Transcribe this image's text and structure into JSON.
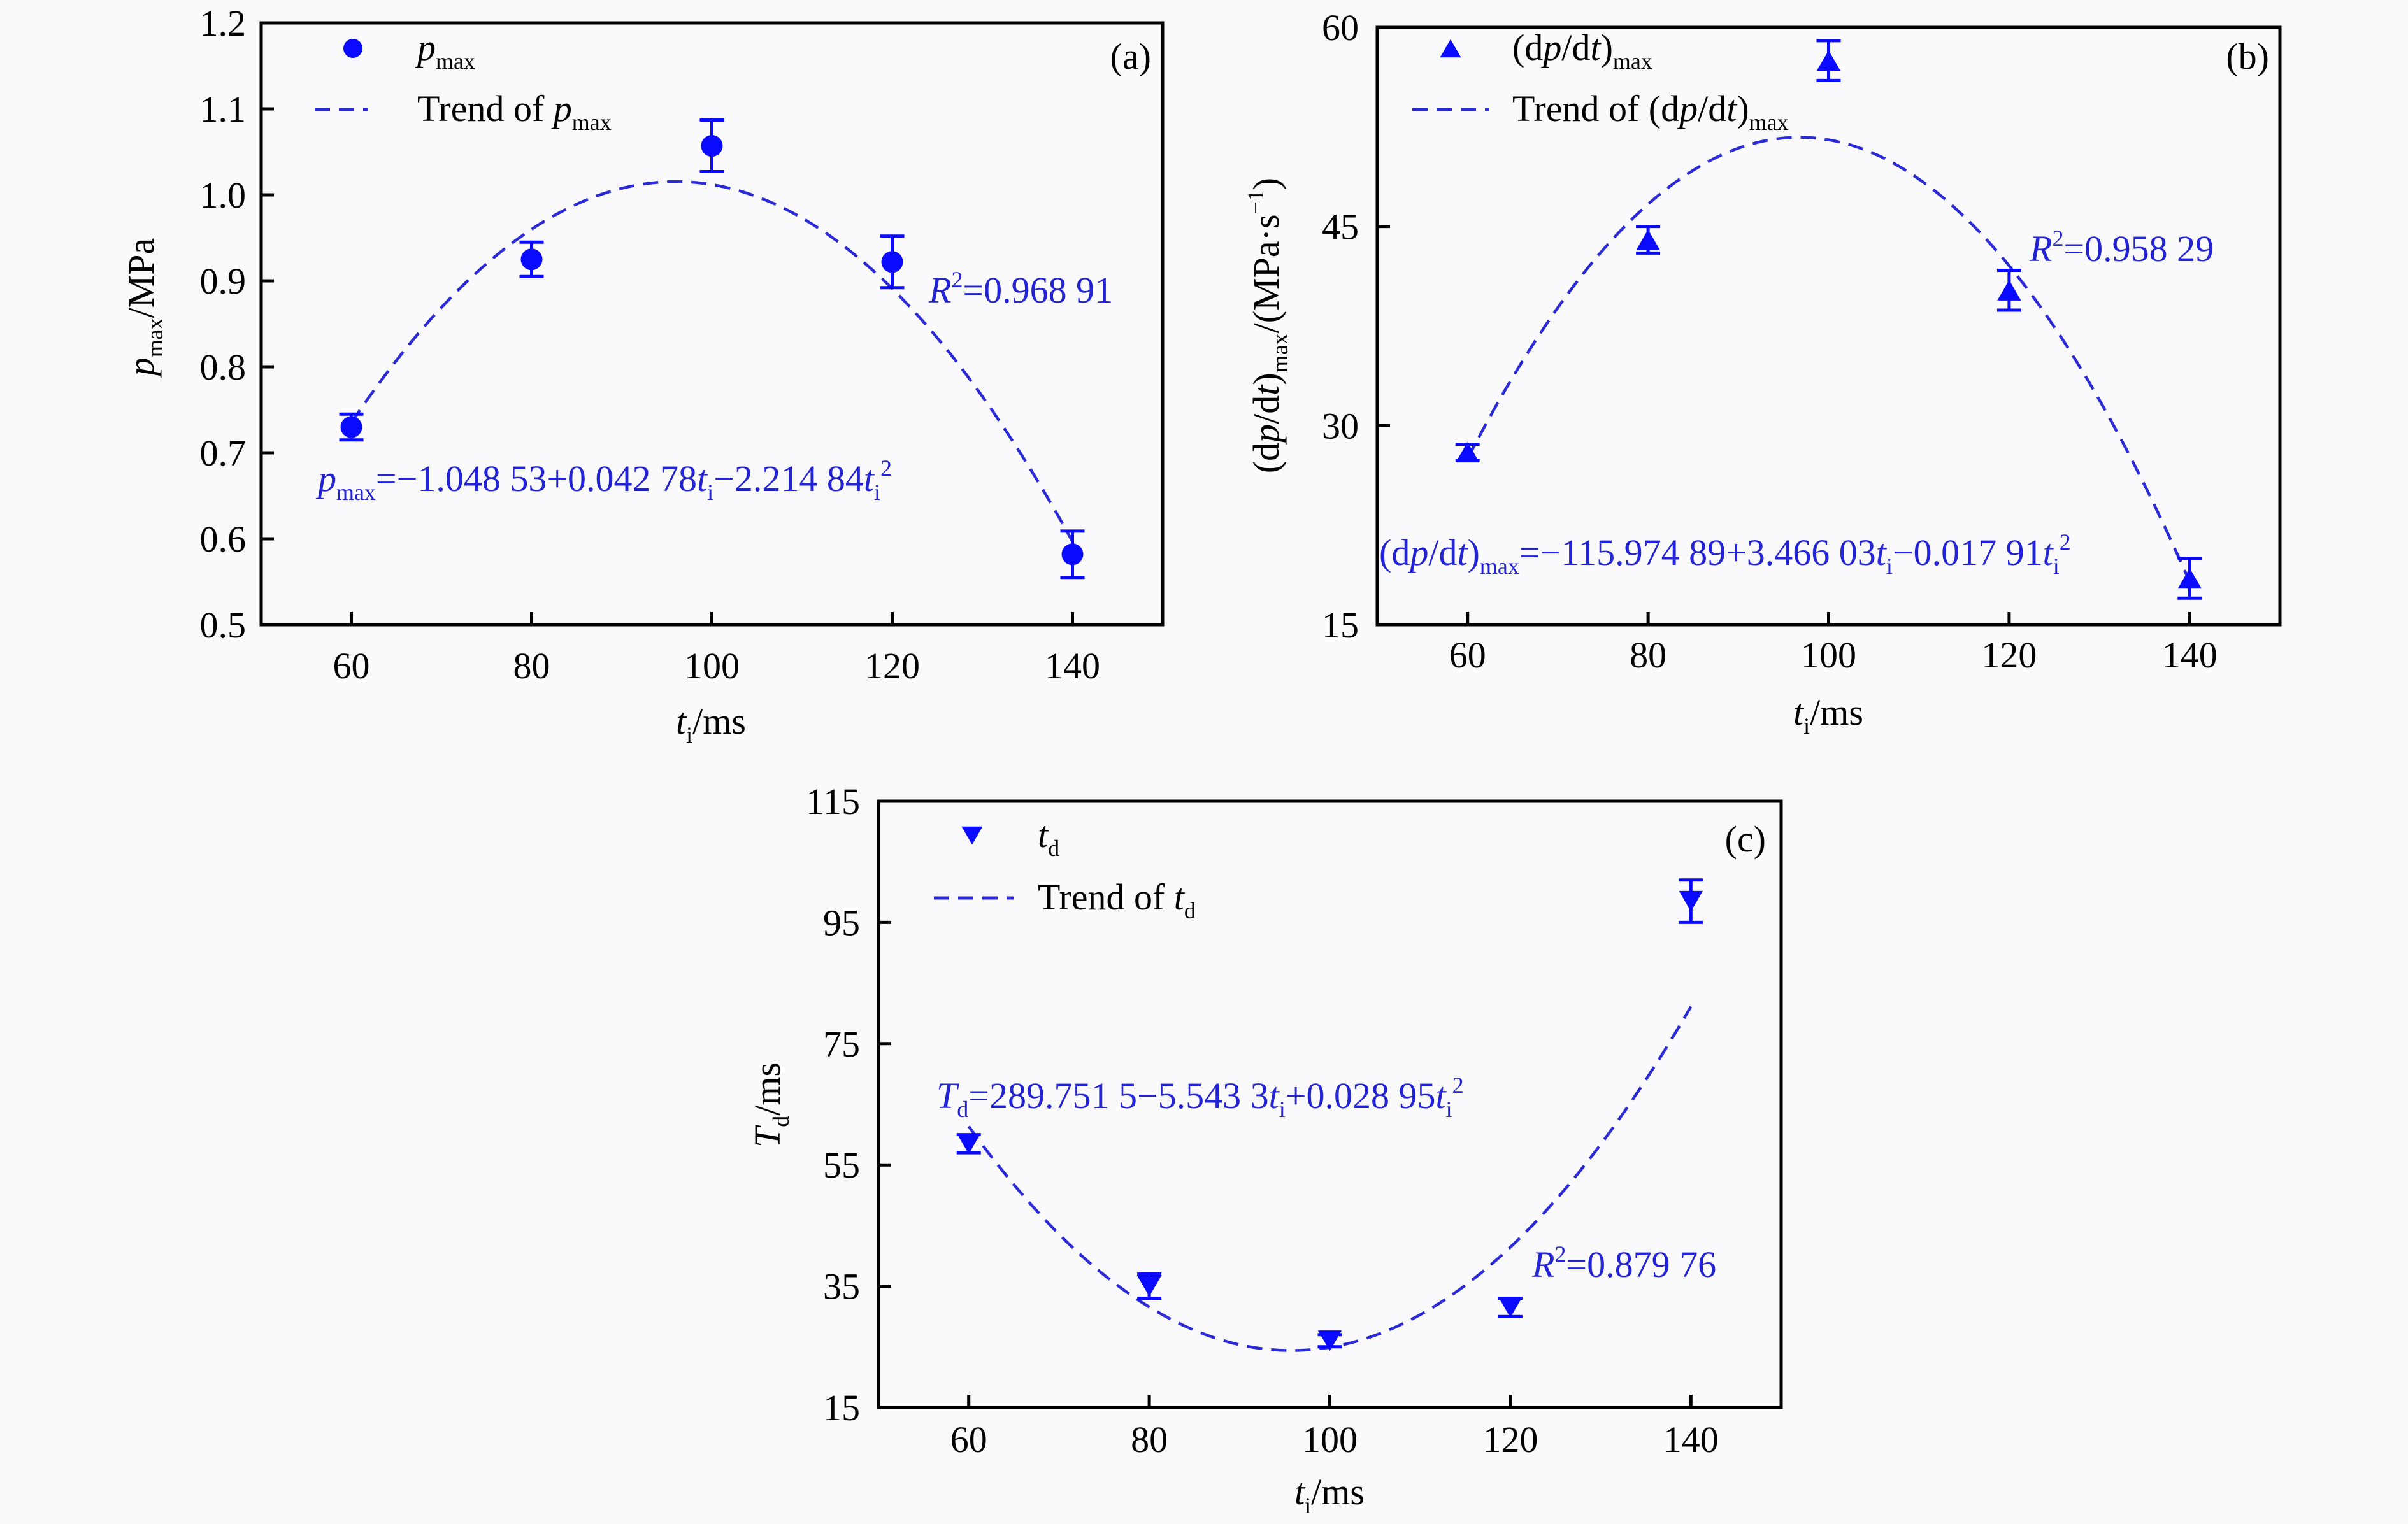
{
  "colors": {
    "marker": "#0a0aff",
    "trend": "#2a2ad8",
    "annotation": "#2323d6",
    "axis": "#000000",
    "background": "#fafafc"
  },
  "chart_data": [
    {
      "panel": "(a)",
      "type": "scatter",
      "marker": "circle",
      "xlim": [
        50,
        150
      ],
      "ylim": [
        0.5,
        1.2
      ],
      "xticks": [
        "60",
        "80",
        "100",
        "120",
        "140"
      ],
      "yticks": [
        "0.5",
        "0.6",
        "0.7",
        "0.8",
        "0.9",
        "1.0",
        "1.1",
        "1.2"
      ],
      "xlabel": [
        [
          "t",
          "i"
        ],
        [
          "i",
          "sub"
        ],
        [
          "/ms",
          "n"
        ]
      ],
      "ylabel": [
        [
          "p",
          "i"
        ],
        [
          "max",
          "sub"
        ],
        [
          "/MPa",
          "n"
        ]
      ],
      "legend": {
        "placement": "top-left",
        "points": [
          [
            "p",
            "i"
          ],
          [
            "max",
            "sub"
          ]
        ],
        "trend": [
          [
            "Trend of ",
            "n"
          ],
          [
            "p",
            "i"
          ],
          [
            "max",
            "sub"
          ]
        ]
      },
      "x": [
        60,
        80,
        100,
        120,
        140
      ],
      "y": [
        0.73,
        0.925,
        1.057,
        0.922,
        0.582
      ],
      "error": [
        0.015,
        0.02,
        0.03,
        0.03,
        0.027
      ],
      "trend": {
        "x": [
          60,
          70,
          80,
          90,
          100,
          110,
          120,
          130,
          140
        ],
        "y": [
          0.735,
          0.869,
          0.96,
          1.007,
          1.012,
          0.973,
          0.891,
          0.765,
          0.597
        ]
      },
      "r2": [
        [
          "R",
          "i"
        ],
        [
          "2",
          "sup"
        ],
        [
          "=0.968 91",
          "n"
        ]
      ],
      "equation": [
        [
          "p",
          "i"
        ],
        [
          "max",
          "sub"
        ],
        [
          "=−1.048 53+0.042 78",
          "n"
        ],
        [
          "t",
          "i"
        ],
        [
          "i",
          "sub"
        ],
        [
          "−2.214 84",
          "n"
        ],
        [
          "t",
          "i"
        ],
        [
          "i",
          "sub"
        ],
        [
          "2",
          "sup"
        ]
      ]
    },
    {
      "panel": "(b)",
      "type": "scatter",
      "marker": "triangle-up",
      "xlim": [
        50,
        150
      ],
      "ylim": [
        15,
        60
      ],
      "xticks": [
        "60",
        "80",
        "100",
        "120",
        "140"
      ],
      "yticks": [
        "15",
        "30",
        "45",
        "60"
      ],
      "xlabel": [
        [
          "t",
          "i"
        ],
        [
          "i",
          "sub"
        ],
        [
          "/ms",
          "n"
        ]
      ],
      "ylabel": [
        [
          "(d",
          "n"
        ],
        [
          "p",
          "i"
        ],
        [
          "/d",
          "n"
        ],
        [
          "t",
          "i"
        ],
        [
          ")",
          "n"
        ],
        [
          "max",
          "sub"
        ],
        [
          "/(MPa·s",
          "n"
        ],
        [
          "−1",
          "sup"
        ],
        [
          ")",
          "n"
        ]
      ],
      "legend": {
        "placement": "top-left",
        "points": [
          [
            "(d",
            "n"
          ],
          [
            "p",
            "i"
          ],
          [
            "/d",
            "n"
          ],
          [
            "t",
            "i"
          ],
          [
            ")",
            "n"
          ],
          [
            "max",
            "sub"
          ]
        ],
        "trend": [
          [
            "Trend of (d",
            "n"
          ],
          [
            "p",
            "i"
          ],
          [
            "/d",
            "n"
          ],
          [
            "t",
            "i"
          ],
          [
            ")",
            "n"
          ],
          [
            "max",
            "sub"
          ]
        ]
      },
      "x": [
        60,
        80,
        100,
        120,
        140
      ],
      "y": [
        28.0,
        44.0,
        57.5,
        40.2,
        18.5
      ],
      "error": [
        0.6,
        1.0,
        1.5,
        1.5,
        1.5
      ],
      "trend": {
        "x": [
          60,
          70,
          80,
          90,
          100,
          110,
          120,
          130,
          140
        ],
        "y": [
          27.51,
          38.89,
          46.68,
          50.9,
          51.53,
          48.58,
          42.04,
          31.93,
          18.23
        ]
      },
      "r2": [
        [
          "R",
          "i"
        ],
        [
          "2",
          "sup"
        ],
        [
          "=0.958 29",
          "n"
        ]
      ],
      "equation": [
        [
          "(d",
          "n"
        ],
        [
          "p",
          "i"
        ],
        [
          "/d",
          "n"
        ],
        [
          "t",
          "i"
        ],
        [
          ")",
          "n"
        ],
        [
          "max",
          "sub"
        ],
        [
          "=−115.974 89+3.466 03",
          "n"
        ],
        [
          "t",
          "i"
        ],
        [
          "i",
          "sub"
        ],
        [
          "−0.017 91",
          "n"
        ],
        [
          "t",
          "i"
        ],
        [
          "i",
          "sub"
        ],
        [
          "2",
          "sup"
        ]
      ]
    },
    {
      "panel": "(c)",
      "type": "scatter",
      "marker": "triangle-down",
      "xlim": [
        50,
        150
      ],
      "ylim": [
        15,
        115
      ],
      "xticks": [
        "60",
        "80",
        "100",
        "120",
        "140"
      ],
      "yticks": [
        "15",
        "35",
        "55",
        "75",
        "95",
        "115"
      ],
      "xlabel": [
        [
          "t",
          "i"
        ],
        [
          "i",
          "sub"
        ],
        [
          "/ms",
          "n"
        ]
      ],
      "ylabel": [
        [
          "T",
          "i"
        ],
        [
          "d",
          "sub"
        ],
        [
          "/ms",
          "n"
        ]
      ],
      "legend": {
        "placement": "top-left",
        "points": [
          [
            "t",
            "i"
          ],
          [
            "d",
            "sub"
          ]
        ],
        "trend": [
          [
            "Trend of ",
            "n"
          ],
          [
            "t",
            "i"
          ],
          [
            "d",
            "sub"
          ]
        ]
      },
      "x": [
        60,
        80,
        100,
        120,
        140
      ],
      "y": [
        58.5,
        35.0,
        26.0,
        31.5,
        98.5
      ],
      "error": [
        1.5,
        2.0,
        1.0,
        1.5,
        3.5
      ],
      "trend": {
        "x": [
          60,
          70,
          80,
          90,
          100,
          110,
          120,
          130,
          140
        ],
        "y": [
          61.37,
          43.58,
          31.57,
          25.35,
          24.92,
          30.28,
          41.44,
          58.38,
          81.11
        ]
      },
      "r2": [
        [
          "R",
          "i"
        ],
        [
          "2",
          "sup"
        ],
        [
          "=0.879 76",
          "n"
        ]
      ],
      "equation": [
        [
          "T",
          "i"
        ],
        [
          "d",
          "sub"
        ],
        [
          "=289.751 5−5.543 3",
          "n"
        ],
        [
          "t",
          "i"
        ],
        [
          "i",
          "sub"
        ],
        [
          "+0.028 95",
          "n"
        ],
        [
          "t",
          "i"
        ],
        [
          "i",
          "sub"
        ],
        [
          "2",
          "sup"
        ]
      ]
    }
  ]
}
